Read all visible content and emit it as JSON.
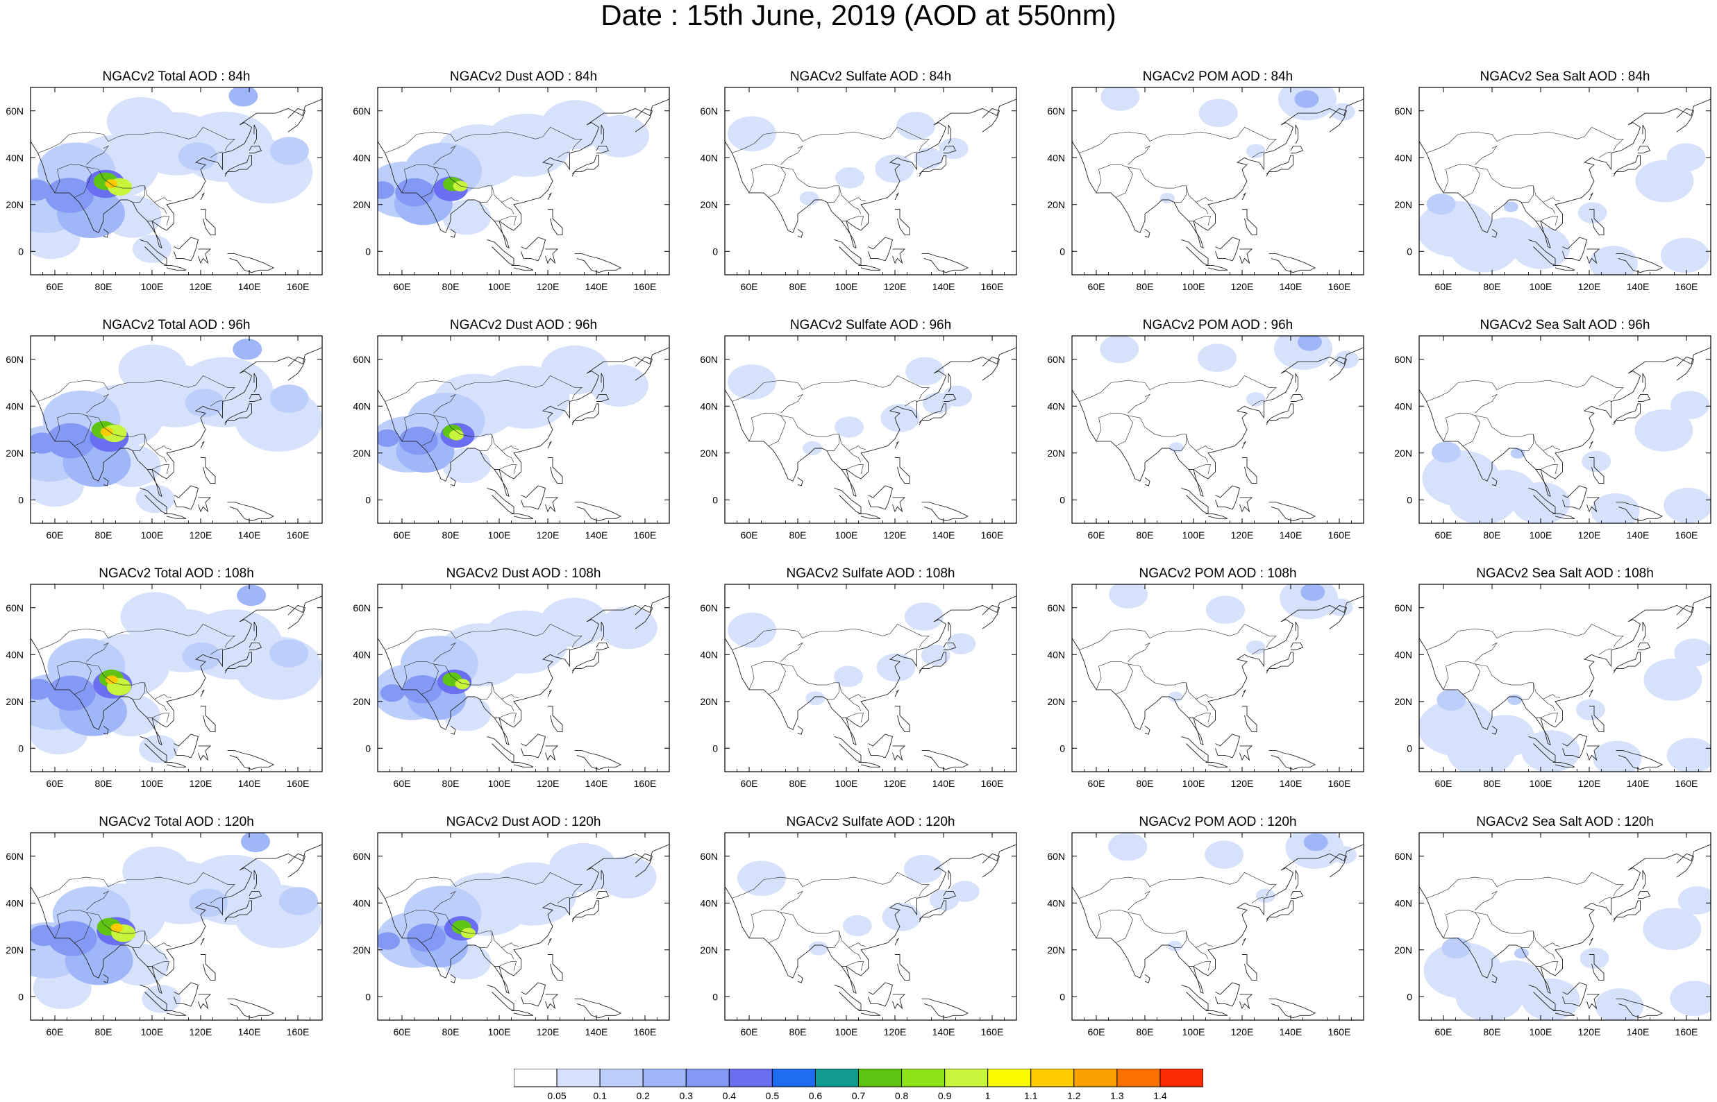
{
  "title": "Date : 15th June, 2019 (AOD at 550nm)",
  "map": {
    "lon_ticks": [
      "60E",
      "80E",
      "100E",
      "120E",
      "140E",
      "160E"
    ],
    "lat_ticks": [
      "60N",
      "40N",
      "20N",
      "0"
    ],
    "lon_range": [
      50,
      170
    ],
    "lat_range": [
      -10,
      70
    ]
  },
  "rows": [
    {
      "lead": "84h",
      "titles": [
        "NGACv2 Total AOD : 84h",
        "NGACv2 Dust AOD : 84h",
        "NGACv2 Sulfate AOD : 84h",
        "NGACv2 POM AOD : 84h",
        "NGACv2 Sea Salt AOD : 84h"
      ]
    },
    {
      "lead": "96h",
      "titles": [
        "NGACv2 Total AOD : 96h",
        "NGACv2 Dust AOD : 96h",
        "NGACv2 Sulfate AOD : 96h",
        "NGACv2 POM AOD : 96h",
        "NGACv2 Sea Salt AOD : 96h"
      ]
    },
    {
      "lead": "108h",
      "titles": [
        "NGACv2 Total AOD : 108h",
        "NGACv2 Dust AOD : 108h",
        "NGACv2 Sulfate AOD : 108h",
        "NGACv2 POM AOD : 108h",
        "NGACv2 Sea Salt AOD : 108h"
      ]
    },
    {
      "lead": "120h",
      "titles": [
        "NGACv2 Total AOD : 120h",
        "NGACv2 Dust AOD : 120h",
        "NGACv2 Sulfate AOD : 120h",
        "NGACv2 POM AOD : 120h",
        "NGACv2 Sea Salt  AOD : 120h"
      ]
    }
  ],
  "colorbar": {
    "colors": [
      "#ffffff",
      "#d6e2fb",
      "#bccffa",
      "#9fb7f8",
      "#8499f4",
      "#6a6ef0",
      "#1f6cf2",
      "#119a8f",
      "#60c414",
      "#8ee41b",
      "#c6f53c",
      "#fbfb00",
      "#fdcb02",
      "#fca000",
      "#fb7100",
      "#fb2a00"
    ],
    "labels": [
      "0.05",
      "0.1",
      "0.2",
      "0.3",
      "0.4",
      "0.5",
      "0.6",
      "0.7",
      "0.8",
      "0.9",
      "1",
      "1.1",
      "1.2",
      "1.3",
      "1.4"
    ]
  }
}
